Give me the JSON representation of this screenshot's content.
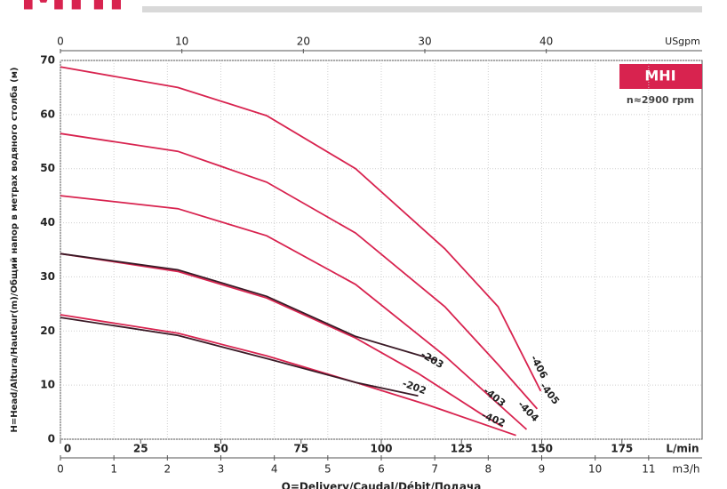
{
  "chart_data": {
    "type": "line",
    "title": "MHI",
    "badge": "MHI",
    "subtitle": "n≈2900 rpm",
    "ylabel": "H=Head/Altura/Hauteur(m)/Общий напор в метрах водяного столба (м)",
    "xlabel": "Q=Delivery/Caudal/Débit/Подача",
    "x_unit": "L/min",
    "xlim": [
      0,
      200
    ],
    "xticks": [
      0,
      25,
      50,
      75,
      100,
      125,
      150,
      175
    ],
    "ylim": [
      0,
      70
    ],
    "yticks": [
      0,
      10,
      20,
      30,
      40,
      50,
      60,
      70
    ],
    "grid": true,
    "m3h_axis": {
      "unit": "m3/h",
      "lim": [
        0,
        12
      ],
      "ticks": [
        0,
        1,
        2,
        3,
        4,
        5,
        6,
        7,
        8,
        9,
        10,
        11
      ]
    },
    "usgpm_axis": {
      "unit": "USgpm",
      "lim": [
        0,
        52.83
      ],
      "ticks": [
        0,
        10,
        20,
        30,
        40
      ]
    },
    "series": [
      {
        "name": "-406",
        "color": "#d8234f",
        "x": [
          0,
          36.6,
          64.3,
          92,
          119.8,
          136.4,
          149.7
        ],
        "values": [
          68.8,
          65,
          59.8,
          50,
          35.2,
          24.5,
          8.9
        ]
      },
      {
        "name": "-405",
        "color": "#d8234f",
        "x": [
          0,
          36.6,
          64.3,
          92,
          119.8,
          136.4,
          148.6
        ],
        "values": [
          56.5,
          53.2,
          47.5,
          38.1,
          24.5,
          13.8,
          5.6
        ]
      },
      {
        "name": "-404",
        "color": "#d8234f",
        "x": [
          0,
          36.6,
          64.3,
          92,
          119.8,
          145.3
        ],
        "values": [
          45,
          42.6,
          37.6,
          28.6,
          15.4,
          1.8
        ]
      },
      {
        "name": "-403",
        "color": "#d8234f",
        "x": [
          0,
          36.6,
          64.3,
          92,
          111.4,
          130.8,
          137.8
        ],
        "values": [
          34.3,
          31,
          26.1,
          18.7,
          12.2,
          4.8,
          2.3
        ]
      },
      {
        "name": "-203",
        "color": "#3a1a26",
        "x": [
          0,
          36.6,
          64.3,
          92,
          117
        ],
        "values": [
          34.3,
          31.3,
          26.4,
          19,
          14.6
        ]
      },
      {
        "name": "-402",
        "color": "#d8234f",
        "x": [
          0,
          36.6,
          64.3,
          92,
          114.2,
          142
        ],
        "values": [
          23,
          19.6,
          15.4,
          10.5,
          6.4,
          0.7
        ]
      },
      {
        "name": "-202",
        "color": "#3a1a26",
        "x": [
          0,
          36.6,
          64.3,
          92,
          111.5
        ],
        "values": [
          22.5,
          19.2,
          14.9,
          10.5,
          8
        ]
      }
    ]
  }
}
